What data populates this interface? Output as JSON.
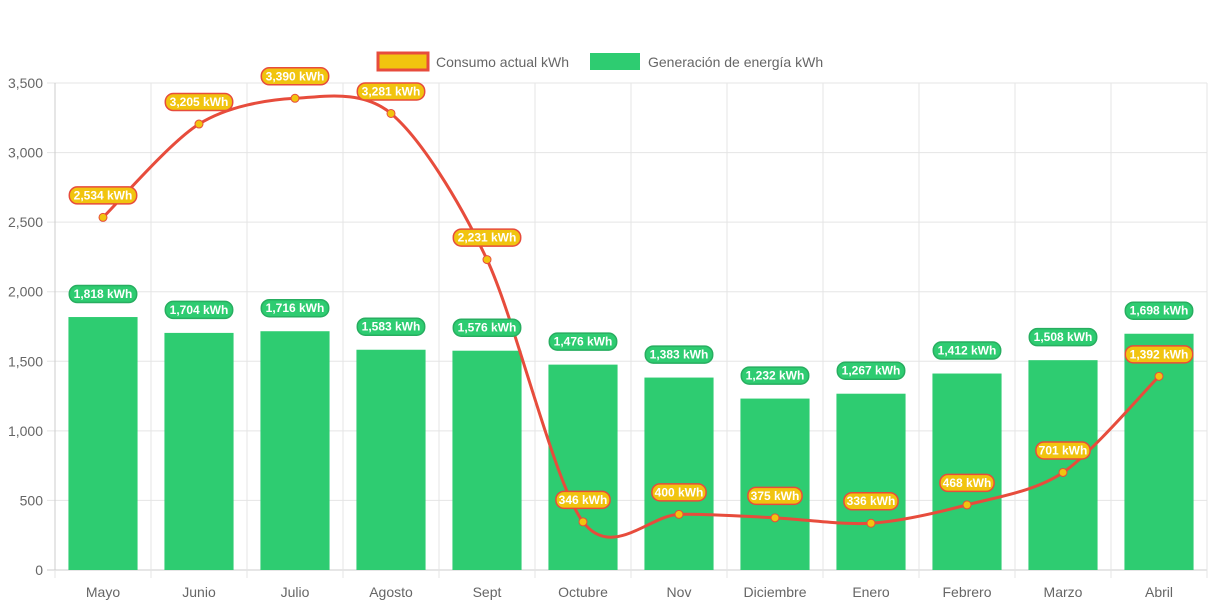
{
  "chart_data": {
    "type": "bar",
    "title": "",
    "xlabel": "",
    "ylabel": "",
    "ylim": [
      0,
      3500
    ],
    "yticks": [
      0,
      500,
      1000,
      1500,
      2000,
      2500,
      3000,
      3500
    ],
    "ytick_labels": [
      "0",
      "500",
      "1,000",
      "1,500",
      "2,000",
      "2,500",
      "3,000",
      "3,500"
    ],
    "grid": true,
    "legend_position": "top-center",
    "categories": [
      "Mayo",
      "Junio",
      "Julio",
      "Agosto",
      "Sept",
      "Octubre",
      "Nov",
      "Diciembre",
      "Enero",
      "Febrero",
      "Marzo",
      "Abril"
    ],
    "series": [
      {
        "name": "Consumo actual kWh",
        "type": "line",
        "color": "#e74c3c",
        "point_color": "#f1c40f",
        "values": [
          2534,
          3205,
          3390,
          3281,
          2231,
          346,
          400,
          375,
          336,
          468,
          701,
          1392
        ],
        "labels": [
          "2,534 kWh",
          "3,205 kWh",
          "3,390 kWh",
          "3,281 kWh",
          "2,231 kWh",
          "346 kWh",
          "400 kWh",
          "375 kWh",
          "336 kWh",
          "468 kWh",
          "701 kWh",
          "1,392 kWh"
        ]
      },
      {
        "name": "Generación de energía kWh",
        "type": "bar",
        "color": "#2ecc71",
        "values": [
          1818,
          1704,
          1716,
          1583,
          1576,
          1476,
          1383,
          1232,
          1267,
          1412,
          1508,
          1698
        ],
        "labels": [
          "1,818 kWh",
          "1,704 kWh",
          "1,716 kWh",
          "1,583 kWh",
          "1,576 kWh",
          "1,476 kWh",
          "1,383 kWh",
          "1,232 kWh",
          "1,267 kWh",
          "1,412 kWh",
          "1,508 kWh",
          "1,698 kWh"
        ]
      }
    ]
  }
}
